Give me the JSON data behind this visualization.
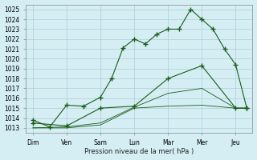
{
  "title": "",
  "xlabel": "Pression niveau de la mer( hPa )",
  "ylabel": "",
  "ylim": [
    1013,
    1025.5
  ],
  "yticks": [
    1013,
    1014,
    1015,
    1016,
    1017,
    1018,
    1019,
    1020,
    1021,
    1022,
    1023,
    1024,
    1025
  ],
  "x_labels": [
    "Dim",
    "Ven",
    "Sam",
    "Lun",
    "Mar",
    "Mer",
    "Jeu"
  ],
  "background_color": "#d4eef4",
  "grid_color": "#b0cdd4",
  "line_color": "#1a5c1a",
  "line1": {
    "x": [
      0,
      0.5,
      1.0,
      1.5,
      2.0,
      2.33,
      2.67,
      3.0,
      3.33,
      3.67,
      4.0,
      4.33,
      4.67,
      5.0,
      5.33,
      5.67,
      6.0,
      6.33
    ],
    "y": [
      1013.8,
      1013.1,
      1015.3,
      1015.2,
      1016.1,
      1018.0,
      1021.1,
      1022.0,
      1021.5,
      1022.5,
      1023.0,
      1023.0,
      1025.0,
      1024.0,
      1023.0,
      1021.0,
      1019.4,
      1015.0
    ]
  },
  "line2": {
    "x": [
      0,
      1.0,
      2.0,
      3.0,
      4.0,
      5.0,
      6.0,
      6.33
    ],
    "y": [
      1013.5,
      1013.2,
      1015.0,
      1015.2,
      1018.0,
      1019.3,
      1015.0,
      1015.0
    ]
  },
  "line3": {
    "x": [
      0,
      1.0,
      2.0,
      3.0,
      4.0,
      5.0,
      6.0,
      6.33
    ],
    "y": [
      1013.0,
      1013.1,
      1013.5,
      1015.1,
      1016.5,
      1017.0,
      1015.0,
      1015.0
    ]
  },
  "line4": {
    "x": [
      0,
      1.0,
      2.0,
      3.0,
      4.0,
      5.0,
      6.0,
      6.33
    ],
    "y": [
      1013.0,
      1013.0,
      1013.3,
      1015.0,
      1015.2,
      1015.3,
      1015.0,
      1015.0
    ]
  }
}
